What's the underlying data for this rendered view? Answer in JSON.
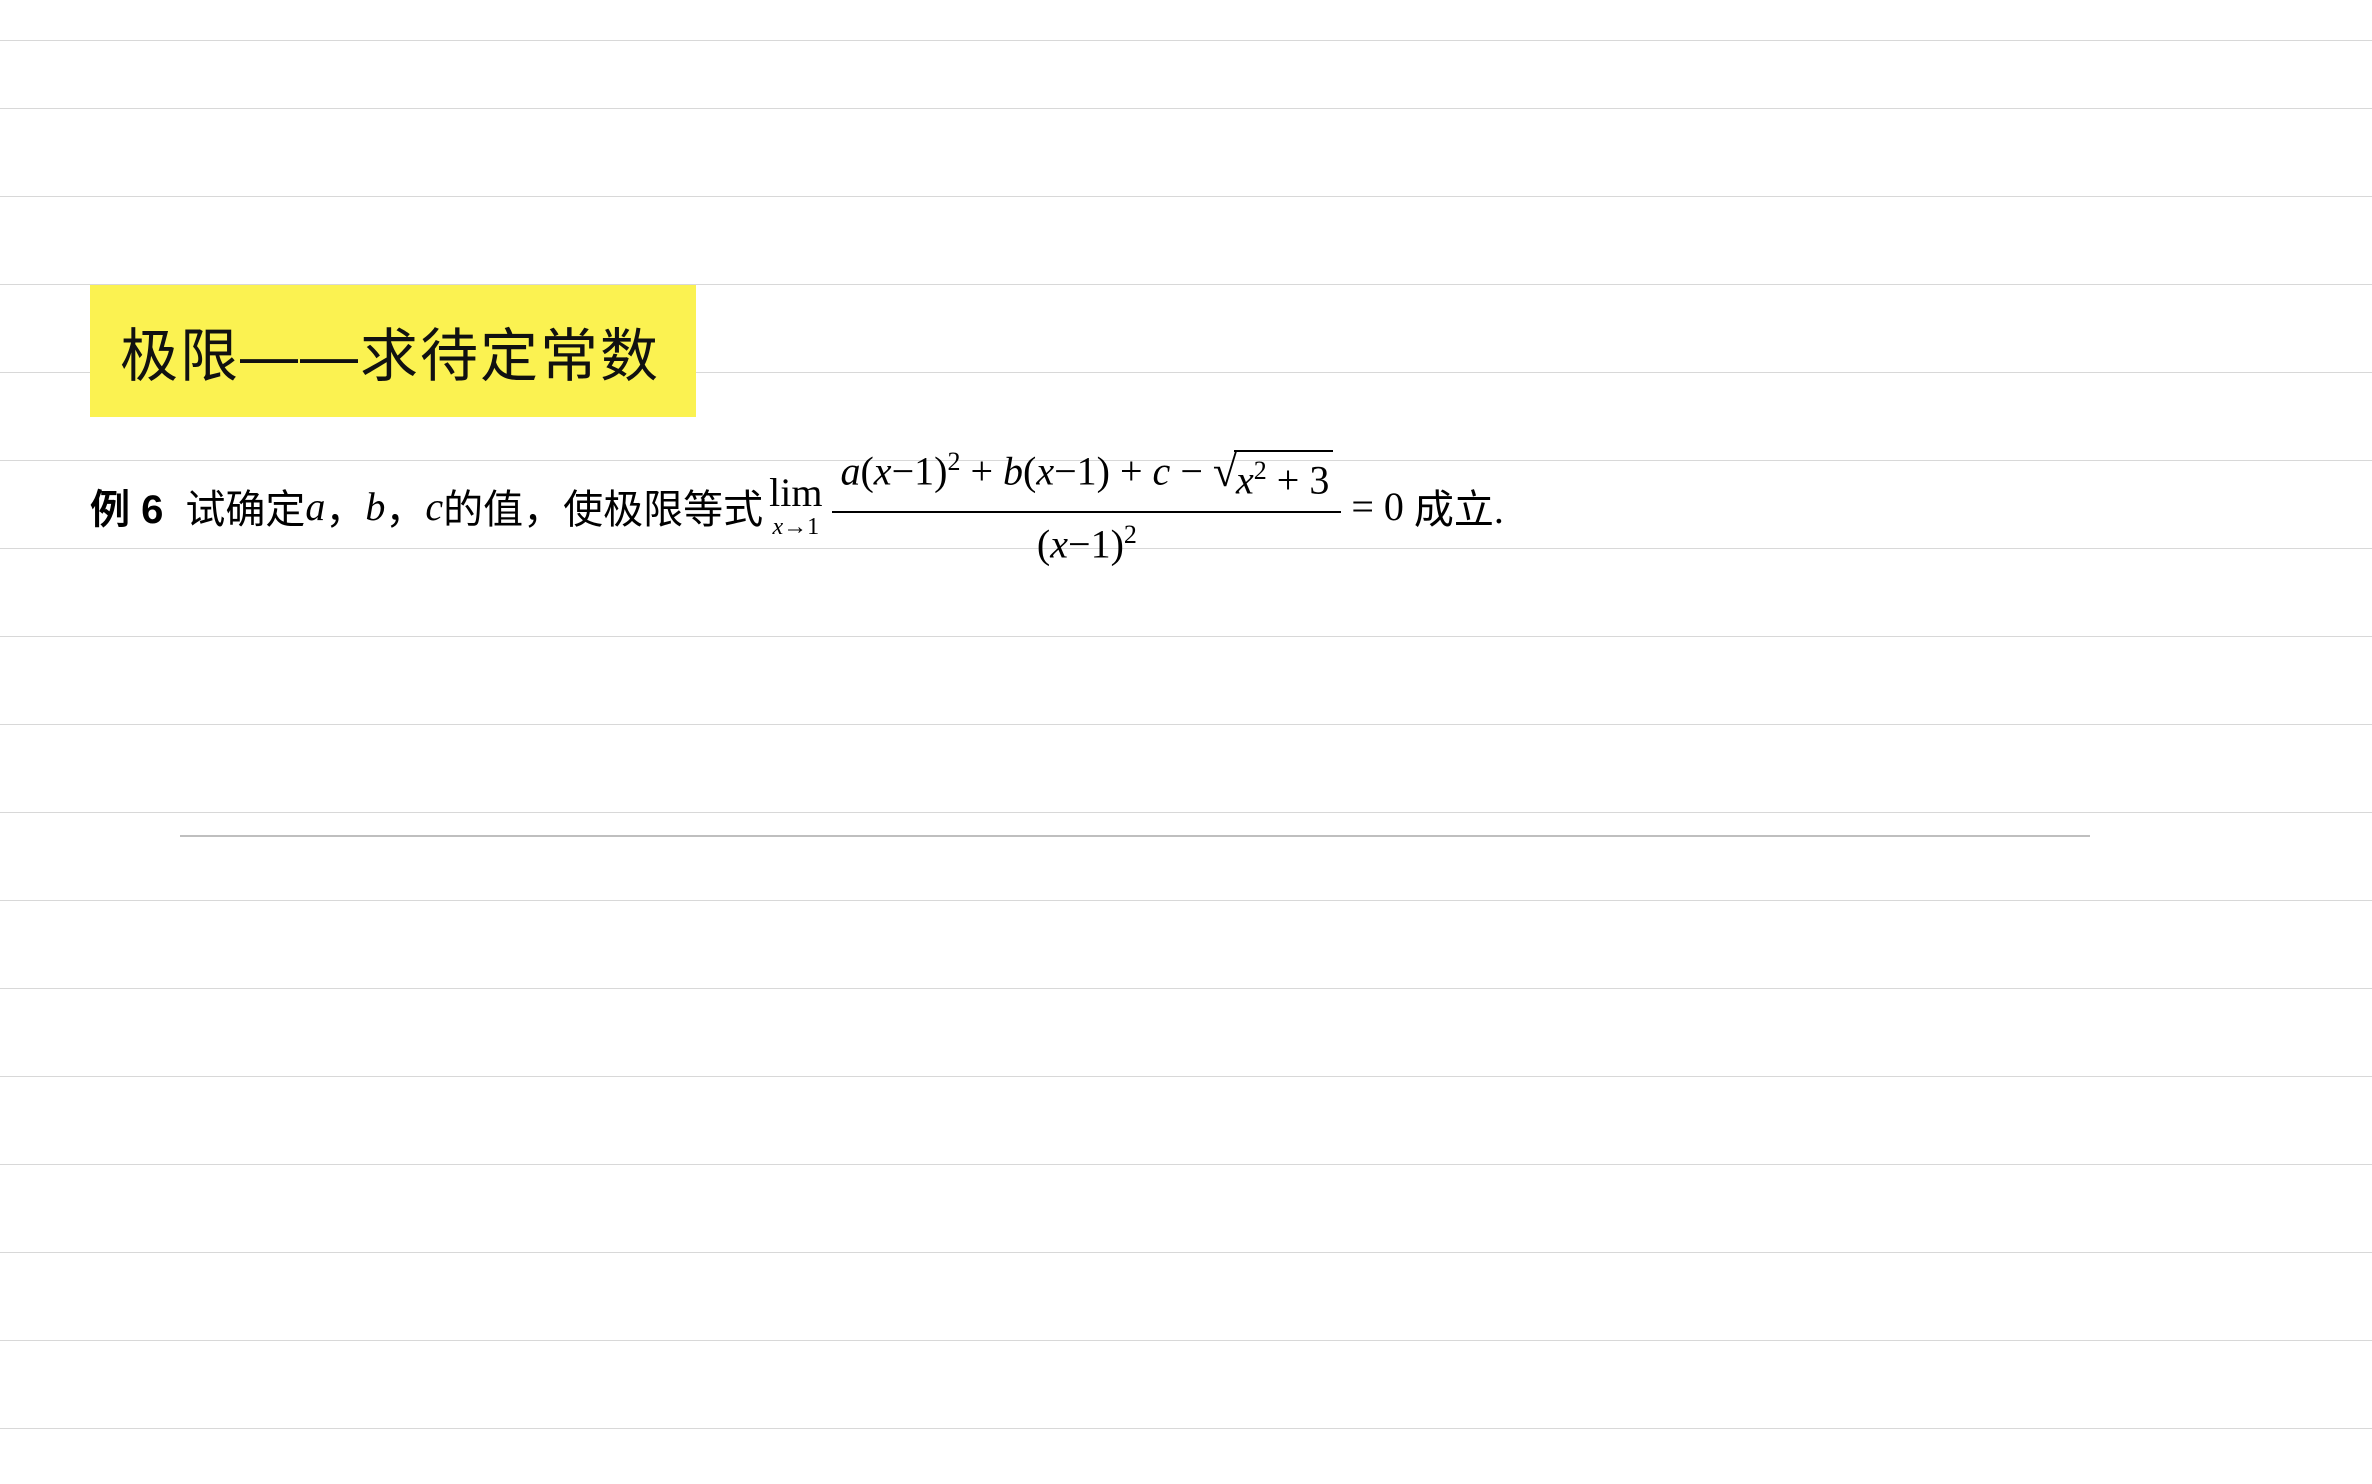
{
  "page": {
    "background_color": "#ffffff",
    "ruled_line_color": "#d8d8d8",
    "ruled_line_positions": [
      40,
      108,
      196,
      284,
      372,
      460,
      548,
      636,
      724,
      812,
      900,
      988,
      1076,
      1164,
      1252,
      1340,
      1428
    ],
    "content_border_color": "#bfbfbf"
  },
  "title": {
    "text": "极限——求待定常数",
    "highlight_color": "#fbf251",
    "text_color": "#111111",
    "fontsize": 58
  },
  "problem": {
    "label": "例 6",
    "intro_text": "试确定 ",
    "var_a": "a",
    "sep1": "，",
    "var_b": "b",
    "sep2": "，",
    "var_c": "c",
    "intro_text2": " 的值，使极限等式 ",
    "limit": {
      "lim_word": "lim",
      "lim_sub_var": "x",
      "lim_sub_arrow": "→",
      "lim_sub_val": "1"
    },
    "fraction": {
      "numerator": {
        "term_a": "a",
        "paren1": "(",
        "x1": "x",
        "minus1": "−1)",
        "exp1": "2",
        "plus1": " + ",
        "term_b": "b",
        "paren2": "(",
        "x2": "x",
        "minus2": "−1) + ",
        "term_c": "c",
        "minus3": " − ",
        "sqrt_x": "x",
        "sqrt_exp": "2",
        "sqrt_plus": " + 3"
      },
      "denominator": {
        "paren": "(",
        "x": "x",
        "minus": "−1)",
        "exp": "2"
      }
    },
    "equals": "= 0",
    "closing": " 成立."
  }
}
